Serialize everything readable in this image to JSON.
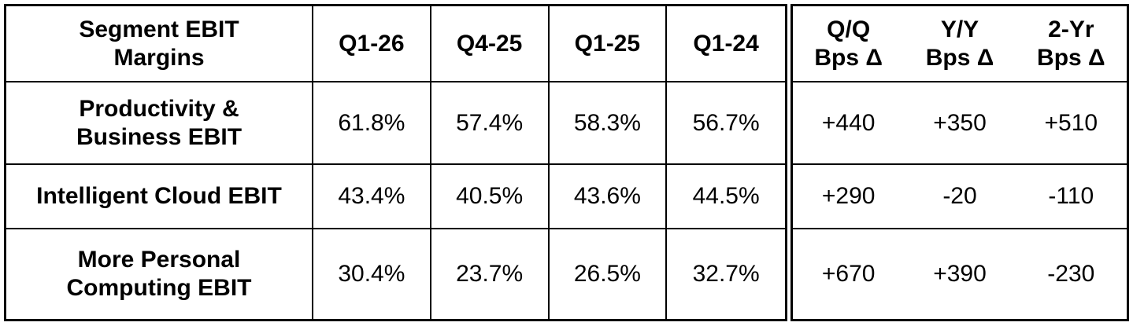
{
  "chart_data": {
    "type": "table",
    "title": "Segment EBIT Margins",
    "columns": [
      "Segment EBIT Margins",
      "Q1-26",
      "Q4-25",
      "Q1-25",
      "Q1-24",
      "Q/Q Bps Δ",
      "Y/Y Bps Δ",
      "2-Yr Bps Δ"
    ],
    "header": {
      "label": {
        "line1": "Segment EBIT",
        "line2": "Margins"
      },
      "periods": [
        "Q1-26",
        "Q4-25",
        "Q1-25",
        "Q1-24"
      ],
      "deltas": [
        {
          "line1": "Q/Q",
          "line2": "Bps Δ"
        },
        {
          "line1": "Y/Y",
          "line2": "Bps Δ"
        },
        {
          "line1": "2-Yr",
          "line2": "Bps Δ"
        }
      ]
    },
    "rows": [
      {
        "label": {
          "line1": "Productivity &",
          "line2": "Business EBIT"
        },
        "margins": [
          "61.8%",
          "57.4%",
          "58.3%",
          "56.7%"
        ],
        "deltas": [
          "+440",
          "+350",
          "+510"
        ]
      },
      {
        "label": {
          "line1": "Intelligent Cloud EBIT",
          "line2": ""
        },
        "margins": [
          "43.4%",
          "40.5%",
          "43.6%",
          "44.5%"
        ],
        "deltas": [
          "+290",
          "-20",
          "-110"
        ]
      },
      {
        "label": {
          "line1": "More Personal",
          "line2": "Computing EBIT"
        },
        "margins": [
          "30.4%",
          "23.7%",
          "26.5%",
          "32.7%"
        ],
        "deltas": [
          "+670",
          "+390",
          "-230"
        ]
      }
    ]
  },
  "colors": {
    "border": "#000000",
    "text": "#000000",
    "background": "#ffffff"
  }
}
